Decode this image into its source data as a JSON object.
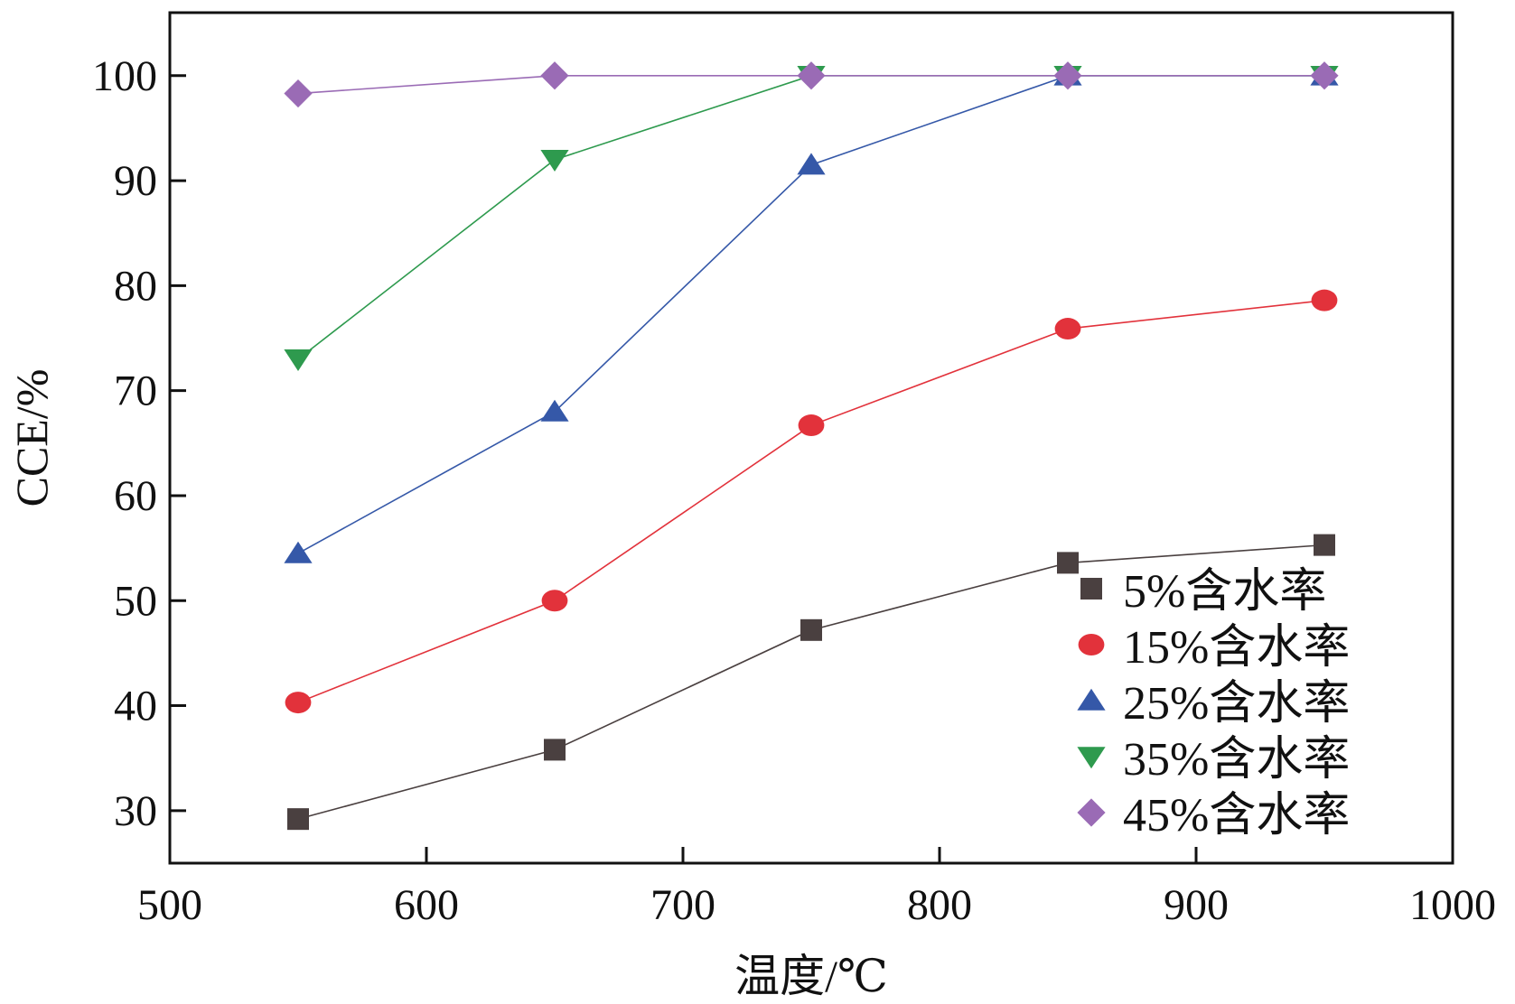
{
  "chart_data": {
    "type": "line",
    "title": "",
    "xlabel": "温度/℃",
    "ylabel": "CCE/%",
    "xlim": [
      500,
      1000
    ],
    "ylim": [
      25,
      106
    ],
    "xticks": [
      500,
      600,
      700,
      800,
      900,
      1000
    ],
    "yticks": [
      30,
      40,
      50,
      60,
      70,
      80,
      90,
      100
    ],
    "grid": false,
    "legend_position": "bottom-right",
    "x": [
      550,
      650,
      750,
      850,
      950
    ],
    "series": [
      {
        "name": "5%含水率",
        "marker": "square",
        "color": "#4a4040",
        "values": [
          29.2,
          35.8,
          47.2,
          53.6,
          55.3
        ]
      },
      {
        "name": "15%含水率",
        "marker": "circle",
        "color": "#e2323b",
        "values": [
          40.3,
          50.0,
          66.7,
          75.9,
          78.6
        ]
      },
      {
        "name": "25%含水率",
        "marker": "triangle-up",
        "color": "#3558a8",
        "values": [
          54.5,
          68.0,
          91.5,
          100.0,
          100.0
        ]
      },
      {
        "name": "35%含水率",
        "marker": "triangle-down",
        "color": "#2e9a4e",
        "values": [
          73.0,
          92.0,
          100.0,
          100.0,
          100.0
        ]
      },
      {
        "name": "45%含水率",
        "marker": "diamond",
        "color": "#9a6bb5",
        "values": [
          98.3,
          100.0,
          100.0,
          100.0,
          100.0
        ]
      }
    ]
  }
}
